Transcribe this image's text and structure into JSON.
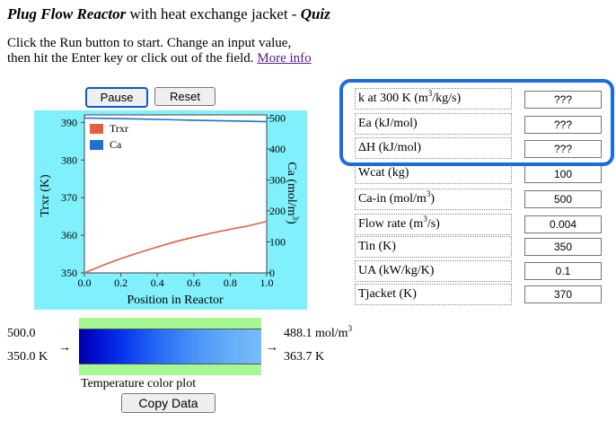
{
  "header": {
    "title_bold": "Plug Flow Reactor",
    "title_rest": " with heat exchange jacket - ",
    "title_quiz": "Quiz",
    "intro_line1": "Click the Run button to start. Change an input value,",
    "intro_line2": "then hit the Enter key or click out of the field.",
    "more_info": "More info"
  },
  "controls": {
    "pause_label": "Pause",
    "reset_label": "Reset",
    "copy_label": "Copy Data"
  },
  "plot": {
    "left_axis_label": "Trxr (K)",
    "right_axis_label": "Ca (mol/m3)",
    "x_axis_label": "Position in Reactor",
    "legend": [
      "Trxr",
      "Ca"
    ],
    "left_ticks": [
      "390",
      "380",
      "370",
      "360",
      "350"
    ],
    "right_ticks": [
      "500",
      "400",
      "300",
      "200",
      "100",
      "0"
    ],
    "x_ticks": [
      "0.0",
      "0.2",
      "0.4",
      "0.6",
      "0.8",
      "1.0"
    ]
  },
  "chart_data": {
    "type": "line",
    "x": [
      0.0,
      0.1,
      0.2,
      0.3,
      0.4,
      0.5,
      0.6,
      0.7,
      0.8,
      0.9,
      1.0
    ],
    "series": [
      {
        "name": "Trxr",
        "axis": "left",
        "color": "#e85c41",
        "values": [
          350.0,
          352.0,
          353.8,
          355.4,
          356.9,
          358.3,
          359.5,
          360.6,
          361.6,
          362.5,
          363.7
        ]
      },
      {
        "name": "Ca",
        "axis": "right",
        "color": "#1f6fd6",
        "values": [
          500.0,
          498.9,
          497.8,
          496.6,
          495.4,
          494.2,
          493.0,
          491.8,
          490.6,
          489.4,
          488.1
        ]
      }
    ],
    "xlim": [
      0,
      1
    ],
    "ylim_left": [
      350,
      392
    ],
    "ylim_right": [
      0,
      510
    ],
    "xlabel": "Position in Reactor",
    "ylabel_left": "Trxr (K)",
    "ylabel_right": "Ca (mol/m3)",
    "legend_position": "top-left",
    "grid": false
  },
  "colorplot": {
    "left_top": "500.0",
    "left_bottom": "350.0 K",
    "right_top": "488.1 mol/m",
    "right_top_sup": "3",
    "right_bottom": "363.7 K",
    "caption": "Temperature color plot",
    "arrow": "→"
  },
  "params": [
    {
      "label": "k at 300 K (m",
      "sup": "3",
      "label_tail": "/kg/s)",
      "value": "???"
    },
    {
      "label": "Ea (kJ/mol)",
      "sup": "",
      "label_tail": "",
      "value": "???"
    },
    {
      "label": "ΔH (kJ/mol)",
      "sup": "",
      "label_tail": "",
      "value": "???"
    },
    {
      "label": "Wcat (kg)",
      "sup": "",
      "label_tail": "",
      "value": "100"
    },
    {
      "label": "Ca-in (mol/m",
      "sup": "3",
      "label_tail": ")",
      "value": "500"
    },
    {
      "label": "Flow rate (m",
      "sup": "3",
      "label_tail": "/s)",
      "value": "0.004"
    },
    {
      "label": "Tin (K)",
      "sup": "",
      "label_tail": "",
      "value": "350"
    },
    {
      "label": "UA (kW/kg/K)",
      "sup": "",
      "label_tail": "",
      "value": "0.1"
    },
    {
      "label": "Tjacket (K)",
      "sup": "",
      "label_tail": "",
      "value": "370"
    }
  ],
  "colors": {
    "plot_bg": "#80f0fd",
    "colorbar_bg": "#a5f892",
    "highlight": "#1a6de0"
  }
}
